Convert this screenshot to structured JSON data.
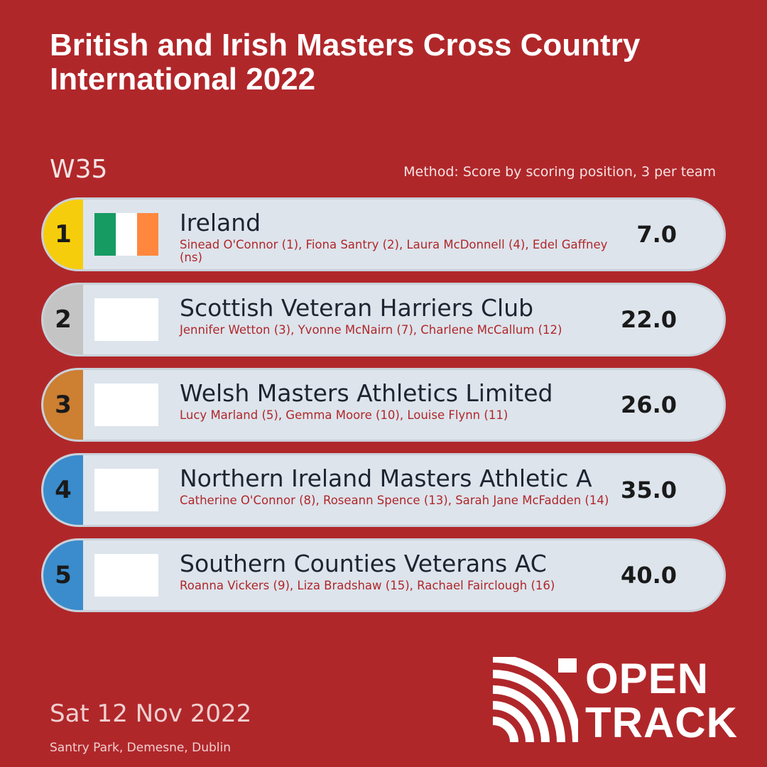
{
  "title": "British and Irish Masters Cross Country International 2022",
  "category": "W35",
  "method": "Method: Score by scoring position, 3 per team",
  "results": [
    {
      "position": "1",
      "team": "Ireland",
      "athletes": "Sinead O'Connor (1), Fiona Santry (2), Laura McDonnell (4), Edel Gaffney (ns)",
      "score": "7.0",
      "pos_color": "#f5cd0c",
      "flag": "ireland-flag"
    },
    {
      "position": "2",
      "team": "Scottish Veteran Harriers Club",
      "athletes": "Jennifer Wetton (3), Yvonne McNairn (7), Charlene McCallum (12)",
      "score": "22.0",
      "pos_color": "#c4c4c4",
      "flag": "blank-flag"
    },
    {
      "position": "3",
      "team": "Welsh Masters Athletics Limited",
      "athletes": "Lucy Marland (5), Gemma Moore (10), Louise Flynn (11)",
      "score": "26.0",
      "pos_color": "#cd7f32",
      "flag": "blank-flag"
    },
    {
      "position": "4",
      "team": "Northern Ireland Masters Athletic A",
      "athletes": "Catherine O'Connor (8), Roseann Spence (13), Sarah Jane McFadden (14)",
      "score": "35.0",
      "pos_color": "#3a8ccc",
      "flag": "blank-flag"
    },
    {
      "position": "5",
      "team": "Southern Counties Veterans AC",
      "athletes": "Roanna Vickers (9), Liza Bradshaw (15), Rachael Fairclough (16)",
      "score": "40.0",
      "pos_color": "#3a8ccc",
      "flag": "blank-flag"
    }
  ],
  "date": "Sat 12 Nov 2022",
  "venue": "Santry Park, Demesne, Dublin",
  "logo": {
    "line1": "OPEN",
    "line2": "TRACK"
  },
  "colors": {
    "background": "#b0272a",
    "ireland_green": "#169b62",
    "ireland_orange": "#ff883e"
  }
}
